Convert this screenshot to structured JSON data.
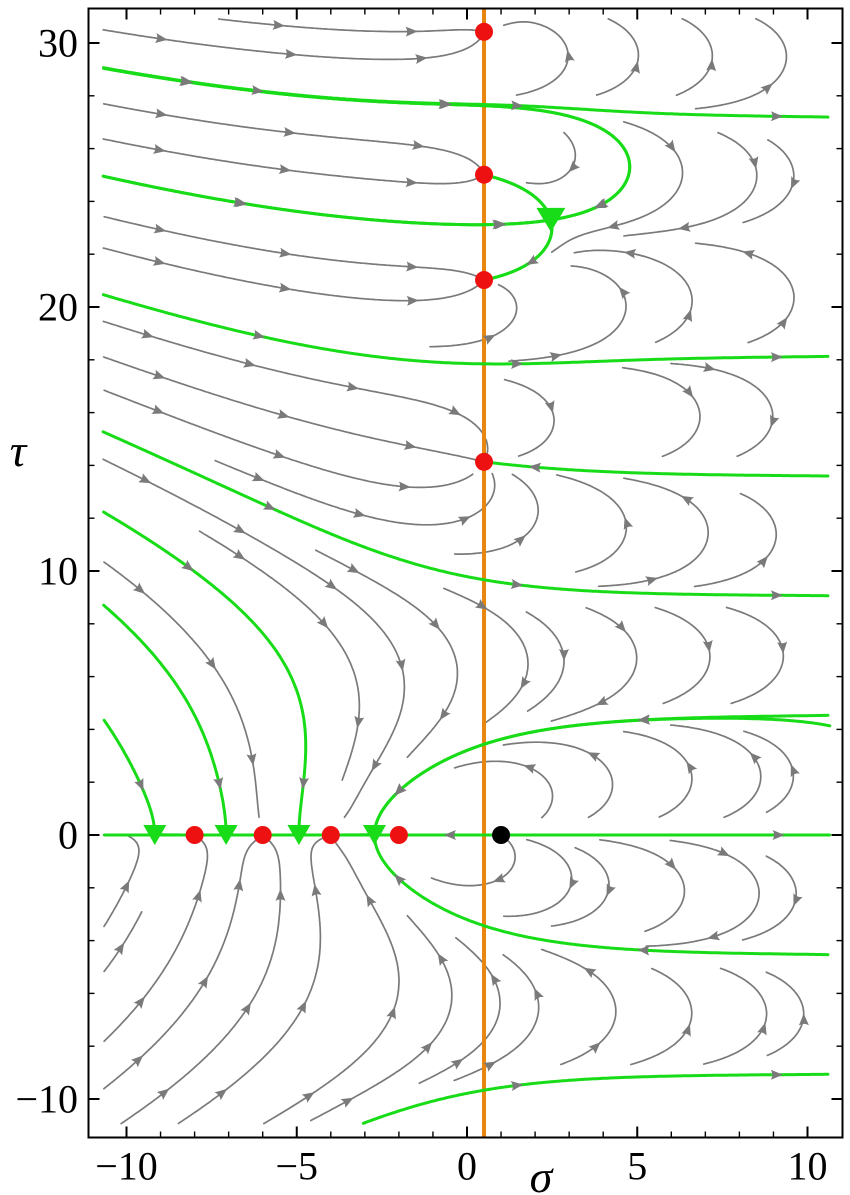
{
  "figure": {
    "background": "#ffffff",
    "kind": "stream-plot-phase-portrait"
  },
  "chart_data": {
    "type": "streamplot",
    "title": "",
    "description": "Phase portrait (Newton flow) of the Riemann zeta function in the complex plane s = sigma + i tau. Gray stream lines follow ds/dt = -zeta(s)/zeta'(s); green curves are separatrices through the zeros of zeta'; the orange vertical line is the critical line sigma = 1/2; red dots are the zeros of zeta (nontrivial on the critical line, trivial at -2,-4,-6,-8); the black dot is the pole at s = 1.",
    "xlabel": "σ",
    "ylabel": "τ",
    "xlim": [
      -10,
      10
    ],
    "ylim": [
      -10,
      30
    ],
    "grid": false,
    "legend": null,
    "x_ticks": {
      "major": [
        {
          "v": -10,
          "label": "−10"
        },
        {
          "v": -5,
          "label": "−5"
        },
        {
          "v": 0,
          "label": "0"
        },
        {
          "v": 5,
          "label": "5"
        },
        {
          "v": 10,
          "label": "10"
        }
      ],
      "minor_step": 1
    },
    "y_ticks": {
      "major": [
        {
          "v": -10,
          "label": "−10"
        },
        {
          "v": 0,
          "label": "0"
        },
        {
          "v": 10,
          "label": "10"
        },
        {
          "v": 20,
          "label": "20"
        },
        {
          "v": 30,
          "label": "30"
        }
      ],
      "minor_step": 2
    },
    "critical_line_sigma": 0.5,
    "pole": [
      1,
      0
    ],
    "zeros_nontrivial": [
      [
        0.5,
        14.1347
      ],
      [
        0.5,
        21.022
      ],
      [
        0.5,
        25.0109
      ],
      [
        0.5,
        30.4249
      ]
    ],
    "zeros_trivial": [
      [
        -2,
        0
      ],
      [
        -4,
        0
      ],
      [
        -6,
        0
      ],
      [
        -8,
        0
      ]
    ],
    "zeta_prime_zeros_real": [
      -2.7173,
      -4.9368,
      -7.0746,
      -9.17
    ],
    "zeta_prime_zero_complex": [
      2.4631,
      23.2984
    ],
    "separatrix_right_edge_incoming_tau": [
      4.5324,
      13.5971,
      -4.5324
    ],
    "separatrix_right_edge_outgoing_tau": [
      9.0647,
      18.1294,
      27.1941,
      -9.0647
    ],
    "colors": {
      "streamline": "#7a7a7a",
      "arrow": "#7a7a7a",
      "separatrix": "#17DC17",
      "critical_line": "#E8860E",
      "zero_dot": "#EE1111",
      "pole_dot": "#000000",
      "frame": "#000000"
    }
  }
}
